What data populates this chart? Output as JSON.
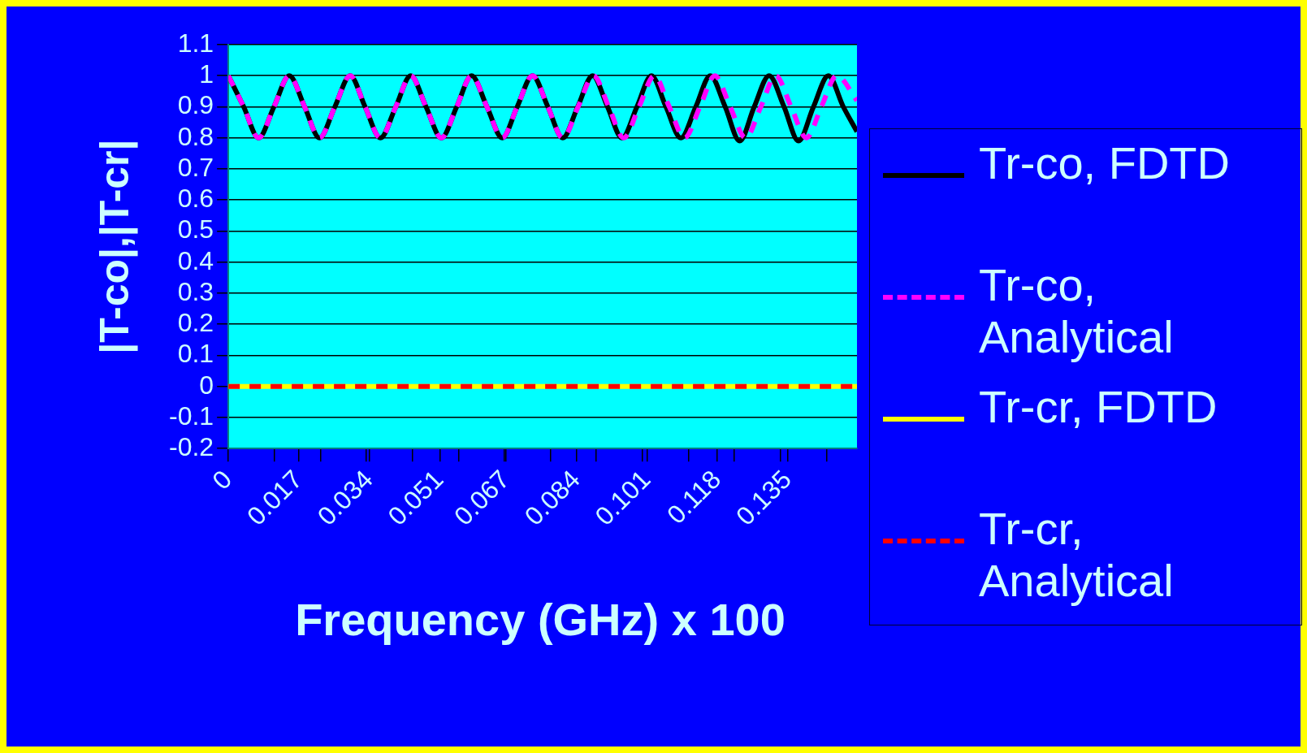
{
  "chart_data": {
    "type": "line",
    "xlabel": "Frequency (GHz) x 100",
    "ylabel": "|T-co|,|T-cr|",
    "xlim": [
      0,
      0.1517
    ],
    "xticks": [
      0,
      {
        "value": 0.0111,
        "label": null
      },
      0.017,
      {
        "value": 0.0222,
        "label": null
      },
      {
        "value": 0.0333,
        "label": null
      },
      0.034,
      {
        "value": 0.0444,
        "label": null
      },
      0.051,
      {
        "value": 0.0555,
        "label": null
      },
      {
        "value": 0.0666,
        "label": null
      },
      0.067,
      {
        "value": 0.0777,
        "label": null
      },
      0.084,
      {
        "value": 0.0888,
        "label": null
      },
      {
        "value": 0.0999,
        "label": null
      },
      0.101,
      {
        "value": 0.111,
        "label": null
      },
      0.118,
      {
        "value": 0.1221,
        "label": null
      },
      {
        "value": 0.1332,
        "label": null
      },
      0.135,
      {
        "value": 0.1443,
        "label": null
      }
    ],
    "ylim": [
      -0.2,
      1.1
    ],
    "yticks": [
      -0.2,
      -0.1,
      0,
      0.1,
      0.2,
      0.3,
      0.4,
      0.5,
      0.6,
      0.7,
      0.8,
      0.9,
      1,
      1.1
    ],
    "grid": "y",
    "legend": "right",
    "marker": "none",
    "series": [
      {
        "name": "Tr-co, FDTD",
        "color": "#000000",
        "line_style": "solid",
        "x": [
          0,
          0.0037,
          0.0073,
          0.011,
          0.0147,
          0.0184,
          0.022,
          0.0257,
          0.0294,
          0.033,
          0.0367,
          0.0404,
          0.044,
          0.0477,
          0.0514,
          0.0551,
          0.0587,
          0.0624,
          0.0661,
          0.0697,
          0.0734,
          0.0771,
          0.0807,
          0.0843,
          0.0879,
          0.0915,
          0.095,
          0.0986,
          0.1021,
          0.1056,
          0.1092,
          0.1128,
          0.1163,
          0.1199,
          0.1234,
          0.1269,
          0.1305,
          0.1341,
          0.1376,
          0.1412,
          0.1448,
          0.1484,
          0.1517
        ],
        "values": [
          1,
          0.9,
          0.8,
          0.9,
          1,
          0.9,
          0.8,
          0.9,
          1,
          0.9,
          0.8,
          0.9,
          1,
          0.9,
          0.8,
          0.9,
          1,
          0.9,
          0.8,
          0.9,
          1,
          0.9,
          0.8,
          0.9,
          1,
          0.9,
          0.8,
          0.9,
          1,
          0.9,
          0.8,
          0.9,
          1,
          0.9,
          0.79,
          0.9,
          1,
          0.9,
          0.79,
          0.9,
          1,
          0.9,
          0.82
        ]
      },
      {
        "name": "Tr-co, Analytical",
        "color": "#ff00ff",
        "line_style": "dashed",
        "x": [
          0,
          0.0037,
          0.0073,
          0.011,
          0.0147,
          0.0184,
          0.022,
          0.0257,
          0.0294,
          0.033,
          0.0367,
          0.0404,
          0.044,
          0.0477,
          0.0514,
          0.0551,
          0.0587,
          0.0624,
          0.0661,
          0.0697,
          0.0734,
          0.0771,
          0.0807,
          0.0844,
          0.0881,
          0.0918,
          0.0954,
          0.0991,
          0.1028,
          0.1064,
          0.1101,
          0.1138,
          0.1174,
          0.1211,
          0.1248,
          0.1285,
          0.1321,
          0.1358,
          0.1395,
          0.1431,
          0.1468,
          0.1517
        ],
        "values": [
          1,
          0.9,
          0.8,
          0.9,
          1,
          0.9,
          0.8,
          0.9,
          1,
          0.9,
          0.8,
          0.9,
          1,
          0.9,
          0.8,
          0.9,
          1,
          0.9,
          0.8,
          0.9,
          1,
          0.9,
          0.8,
          0.9,
          1,
          0.9,
          0.8,
          0.9,
          1,
          0.9,
          0.8,
          0.9,
          1,
          0.9,
          0.8,
          0.9,
          1,
          0.9,
          0.8,
          0.9,
          1,
          0.92
        ]
      },
      {
        "name": "Tr-cr, FDTD",
        "color": "#ffff00",
        "line_style": "solid",
        "x": [
          0,
          0.05,
          0.1,
          0.1517
        ],
        "values": [
          0,
          0,
          0,
          0
        ]
      },
      {
        "name": "Tr-cr, Analytical",
        "color": "#ff0000",
        "line_style": "dashed",
        "x": [
          0,
          0.05,
          0.1,
          0.1517
        ],
        "values": [
          0,
          0,
          0,
          0
        ]
      }
    ]
  }
}
